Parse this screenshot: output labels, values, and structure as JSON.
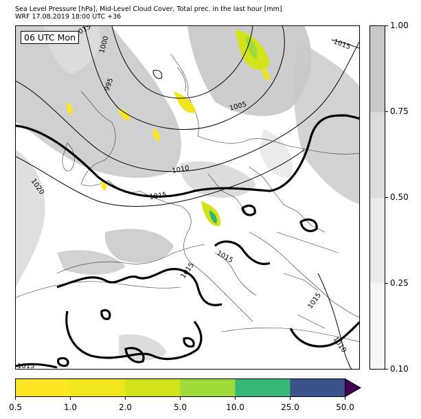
{
  "header": {
    "title_line1": "Sea Level Pressure [hPa], Mid-Level Cloud Cover, Total prec. in the last hour [mm]",
    "title_line2": "WRF 17.08.2019 18:00 UTC +36"
  },
  "map": {
    "valid_time_label": "06 UTC Mon",
    "isobar_labels": [
      "1015",
      "1000",
      "995",
      "1005",
      "1010",
      "1015",
      "1020",
      "1015",
      "1015",
      "1015",
      "1015",
      "1010",
      "1015"
    ]
  },
  "cloud_colorbar": {
    "levels": [
      "1.00",
      "0.75",
      "0.50",
      "0.25",
      "0.10"
    ],
    "colors": [
      "#c8c8c8",
      "#dcdcdc",
      "#ebebeb",
      "#f7f7f7"
    ]
  },
  "precip_colorbar": {
    "levels": [
      "0.5",
      "1.0",
      "2.0",
      "5.0",
      "10.0",
      "25.0",
      "50.0"
    ],
    "colors": [
      "#fde725",
      "#f1e51d",
      "#d2e21b",
      "#a0da39",
      "#35b779",
      "#3b528b",
      "#440154"
    ]
  }
}
